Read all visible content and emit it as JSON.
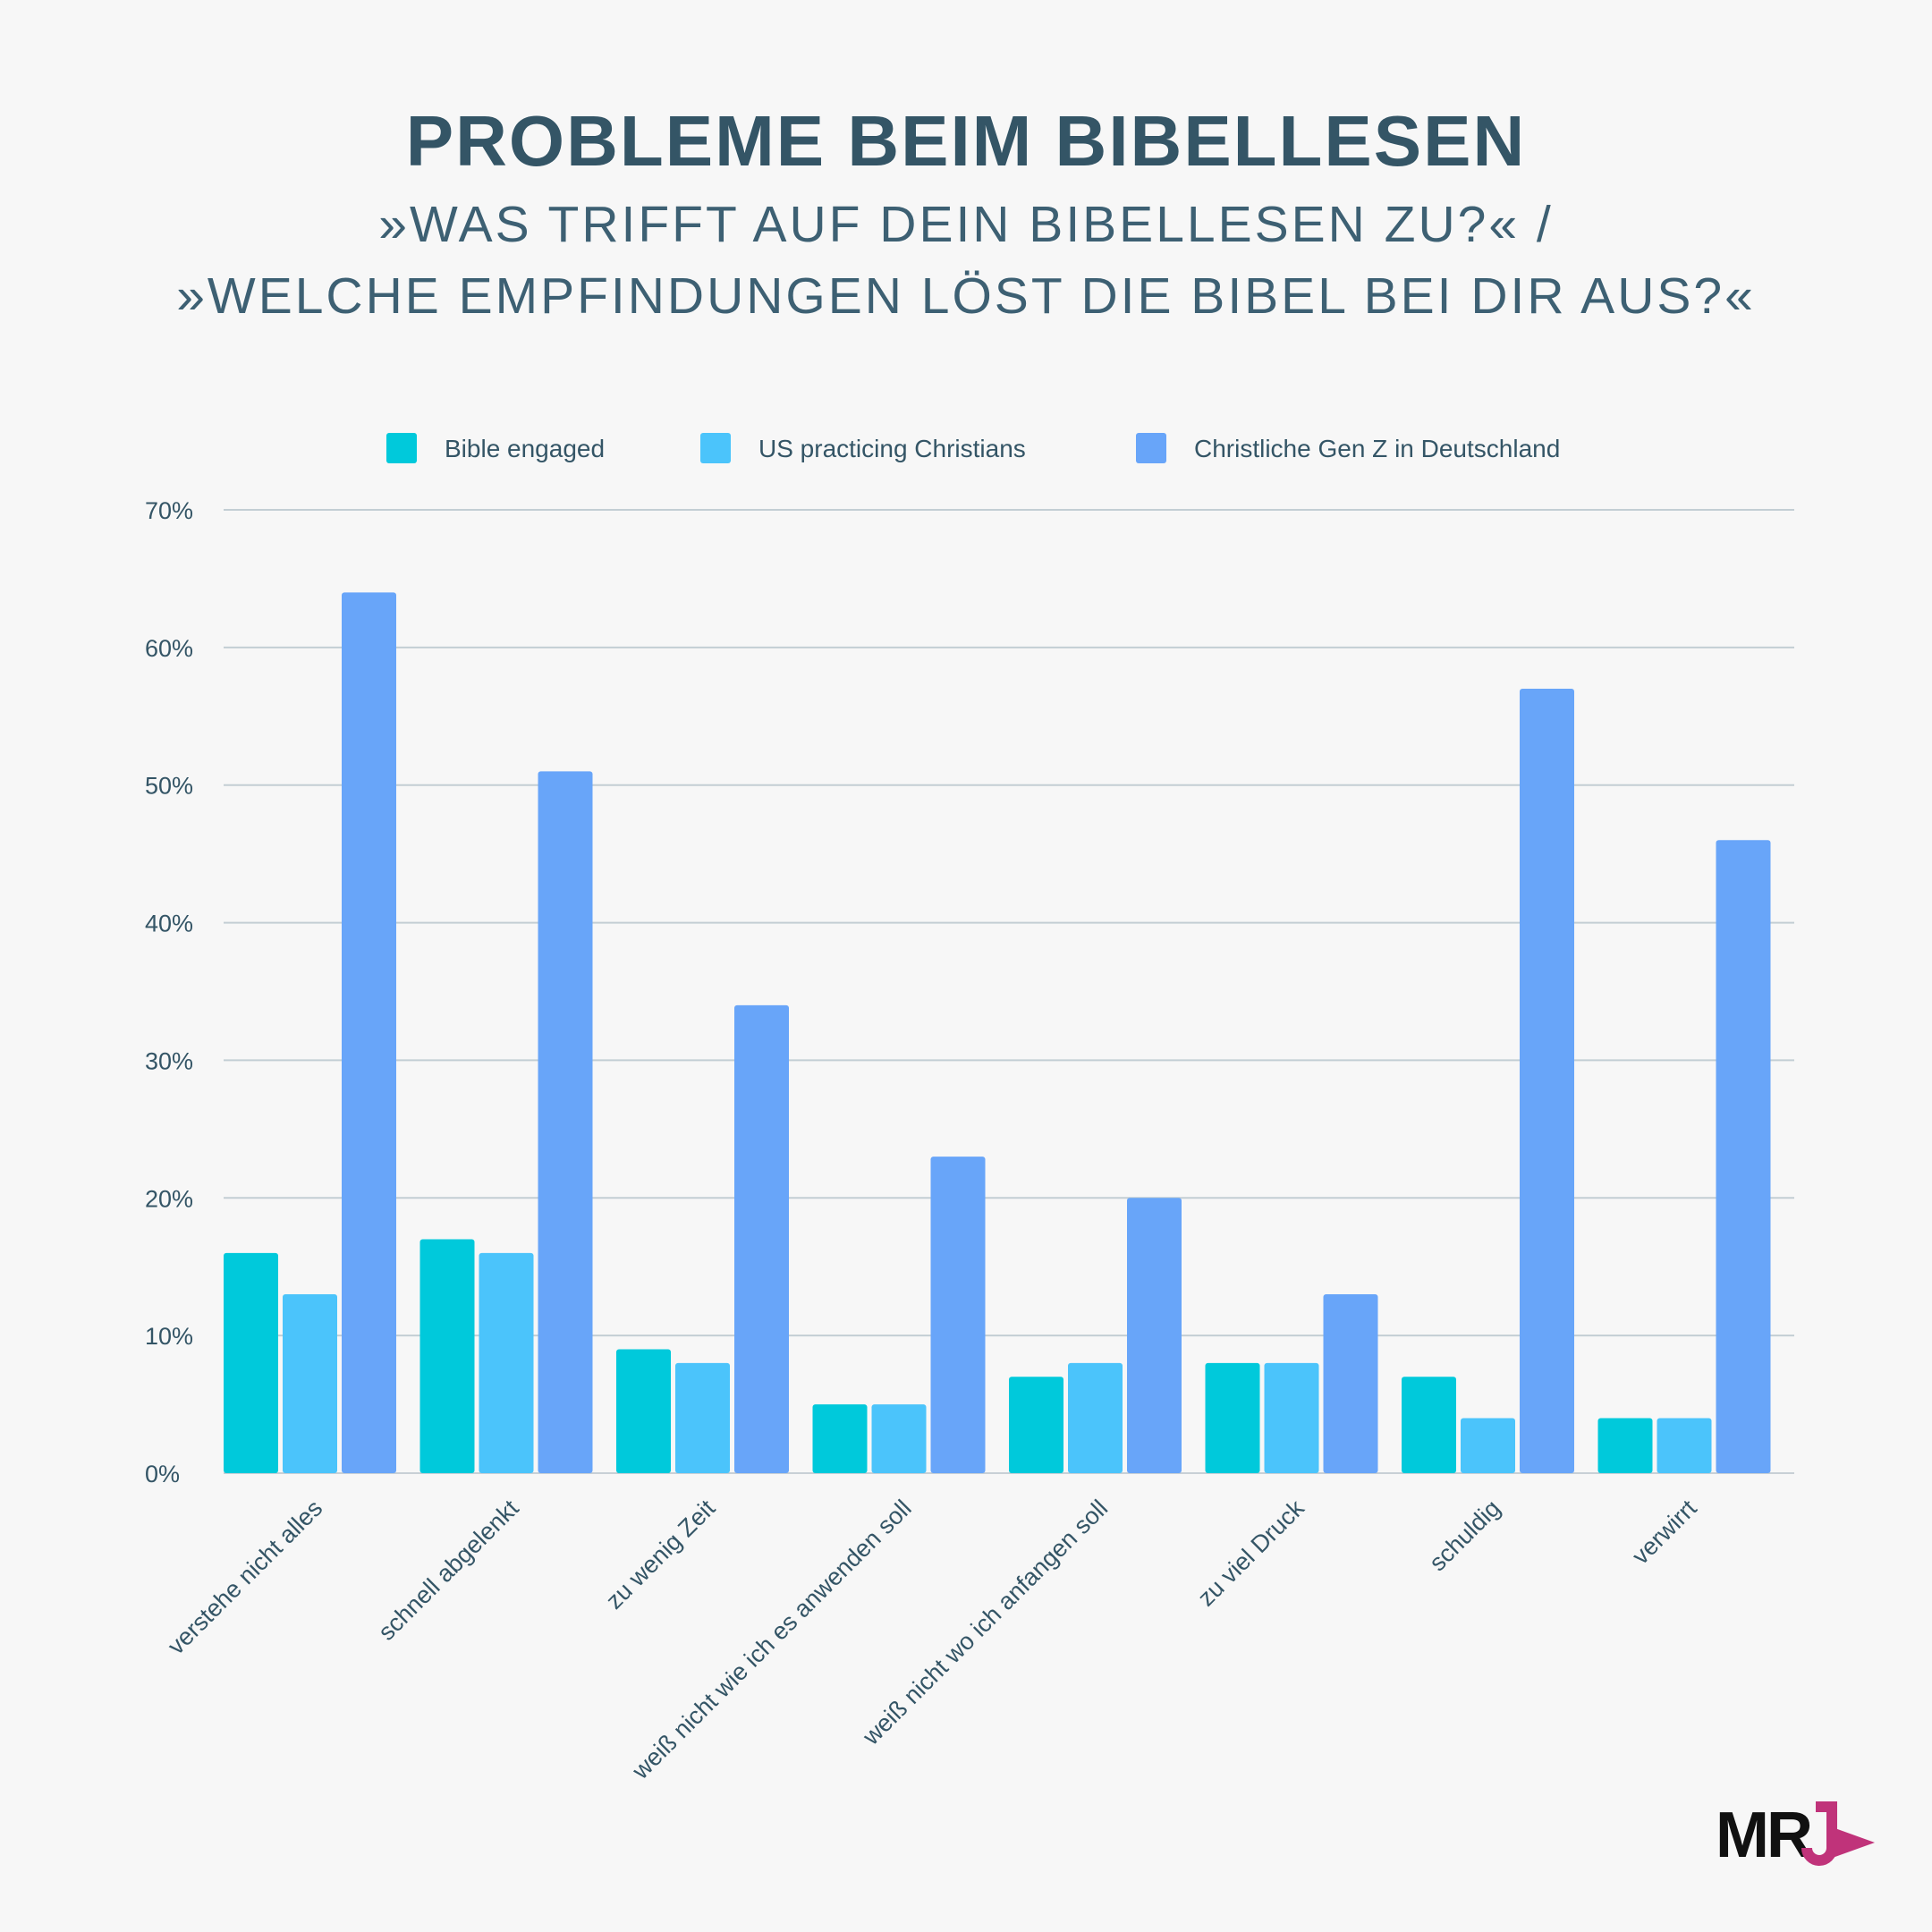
{
  "header": {
    "title": "PROBLEME BEIM BIBELLESEN",
    "subtitle_line1": "»WAS TRIFFT AUF DEIN BIBELLESEN ZU?« /",
    "subtitle_line2": "»WELCHE EMPFINDUNGEN LÖST DIE BIBEL BEI DIR AUS?«"
  },
  "chart_data": {
    "type": "bar",
    "title": "PROBLEME BEIM BIBELLESEN",
    "xlabel": "",
    "ylabel": "",
    "ylim": [
      0,
      70
    ],
    "yticks": [
      0,
      10,
      20,
      30,
      40,
      50,
      60,
      70
    ],
    "ytick_labels": [
      "0%",
      "10%",
      "20%",
      "30%",
      "40%",
      "50%",
      "60%",
      "70%"
    ],
    "grid": true,
    "legend_position": "top",
    "categories": [
      "verstehe nicht alles",
      "schnell abgelenkt",
      "zu wenig Zeit",
      "weiß nicht wie ich es anwenden soll",
      "weiß nicht wo ich anfangen soll",
      "zu viel Druck",
      "schuldig",
      "verwirrt"
    ],
    "series": [
      {
        "name": "Bible engaged",
        "color": "#00c9db",
        "values": [
          16,
          17,
          9,
          5,
          7,
          8,
          7,
          4
        ]
      },
      {
        "name": "US practicing Christians",
        "color": "#4bc4fb",
        "values": [
          13,
          16,
          8,
          5,
          8,
          8,
          4,
          4
        ]
      },
      {
        "name": "Christliche Gen Z in Deutschland",
        "color": "#68a5f9",
        "values": [
          64,
          51,
          34,
          23,
          20,
          13,
          57,
          46
        ]
      }
    ]
  },
  "logo": {
    "text": "MR",
    "accent_color": "#c0337a"
  }
}
